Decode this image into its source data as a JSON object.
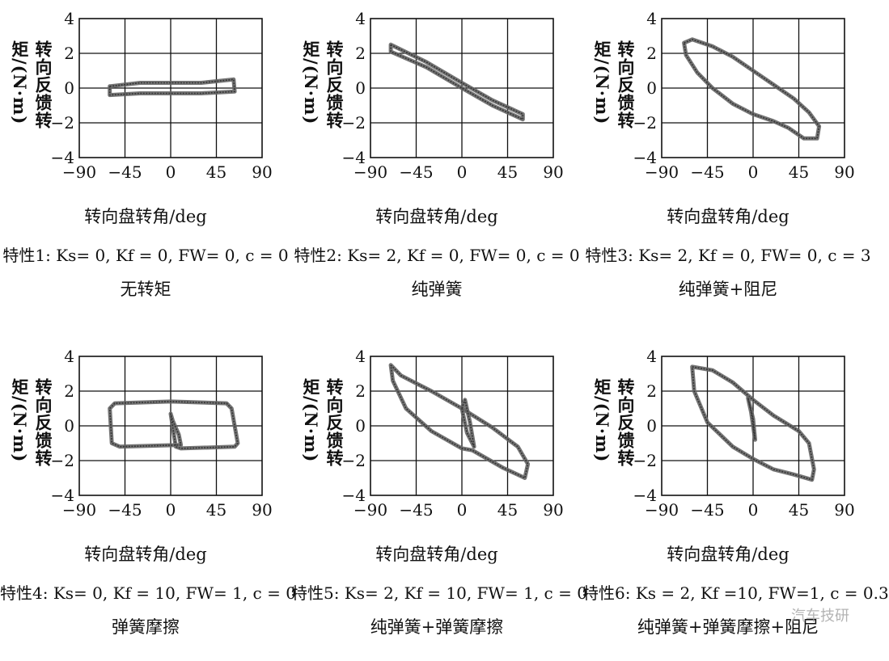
{
  "watermark": "汽车技研",
  "chart_data": [
    {
      "type": "line",
      "title": "特性1: Ks= 0, Kf = 0, FW= 0, c = 0",
      "subtitle": "无转矩",
      "xlabel": "转向盘转角/deg",
      "ylabel": "转向反馈转矩/(N·m)",
      "xlim": [
        -90,
        90
      ],
      "ylim": [
        -4,
        4
      ],
      "xticks": [
        "−90",
        "−45",
        "0",
        "45",
        "90"
      ],
      "yticks": [
        "4",
        "2",
        "0",
        "−2",
        "−4"
      ],
      "grid": true,
      "series": [
        {
          "x": [
            -60,
            -30,
            0,
            30,
            62,
            63,
            30,
            0,
            -30,
            -60,
            -60
          ],
          "y": [
            0.1,
            0.3,
            0.3,
            0.3,
            0.5,
            -0.2,
            -0.3,
            -0.3,
            -0.3,
            -0.4,
            0.1
          ]
        }
      ]
    },
    {
      "type": "line",
      "title": "特性2: Ks= 2, Kf = 0, FW= 0, c = 0",
      "subtitle": "纯弹簧",
      "xlabel": "转向盘转角/deg",
      "ylabel": "转向反馈转矩/(N·m)",
      "xlim": [
        -90,
        90
      ],
      "ylim": [
        -4,
        4
      ],
      "xticks": [
        "−90",
        "−45",
        "0",
        "45",
        "90"
      ],
      "yticks": [
        "4",
        "2",
        "0",
        "−2",
        "−4"
      ],
      "grid": true,
      "series": [
        {
          "x": [
            -70,
            -35,
            0,
            30,
            60,
            60,
            30,
            0,
            -35,
            -70,
            -70
          ],
          "y": [
            2.5,
            1.5,
            0.3,
            -0.7,
            -1.5,
            -1.8,
            -1.0,
            0.0,
            1.2,
            2.1,
            2.5
          ]
        }
      ]
    },
    {
      "type": "line",
      "title": "特性3: Ks= 2, Kf = 0, FW= 0, c = 3",
      "subtitle": "纯弹簧+阻尼",
      "xlabel": "转向盘转角/deg",
      "ylabel": "转向反馈转矩/(N·m)",
      "xlim": [
        -90,
        90
      ],
      "ylim": [
        -4,
        4
      ],
      "xticks": [
        "−90",
        "−45",
        "0",
        "45",
        "90"
      ],
      "yticks": [
        "4",
        "2",
        "0",
        "−2",
        "−4"
      ],
      "grid": true,
      "series": [
        {
          "x": [
            -68,
            -60,
            -40,
            -20,
            0,
            20,
            40,
            55,
            65,
            63,
            50,
            35,
            20,
            0,
            -20,
            -40,
            -55,
            -66,
            -68
          ],
          "y": [
            2.6,
            2.8,
            2.4,
            1.8,
            1.0,
            0.2,
            -0.6,
            -1.4,
            -2.2,
            -2.9,
            -2.9,
            -2.3,
            -1.9,
            -1.5,
            -0.9,
            0.0,
            0.9,
            1.9,
            2.6
          ]
        }
      ]
    },
    {
      "type": "line",
      "title": "特性4: Ks= 0, Kf = 10, FW= 1, c = 0",
      "subtitle": "弹簧摩擦",
      "xlabel": "转向盘转角/deg",
      "ylabel": "转向反馈转矩/(N·m)",
      "xlim": [
        -90,
        90
      ],
      "ylim": [
        -4,
        4
      ],
      "xticks": [
        "−90",
        "−45",
        "0",
        "45",
        "90"
      ],
      "yticks": [
        "4",
        "2",
        "0",
        "−2",
        "−4"
      ],
      "grid": true,
      "series": [
        {
          "x": [
            -60,
            -55,
            0,
            55,
            60,
            66,
            63,
            10,
            5,
            0,
            2,
            8,
            10,
            -50,
            -58,
            -60
          ],
          "y": [
            1.0,
            1.3,
            1.4,
            1.3,
            1.0,
            -1.0,
            -1.2,
            -1.3,
            -1.2,
            0.7,
            0.3,
            -0.5,
            -1.1,
            -1.2,
            -1.0,
            1.0
          ]
        }
      ]
    },
    {
      "type": "line",
      "title": "特性5: Ks= 2, Kf = 10, FW= 1, c = 0",
      "subtitle": "纯弹簧+弹簧摩擦",
      "xlabel": "转向盘转角/deg",
      "ylabel": "转向反馈转矩/(N·m)",
      "xlim": [
        -90,
        90
      ],
      "ylim": [
        -4,
        4
      ],
      "xticks": [
        "−90",
        "−45",
        "0",
        "45",
        "90"
      ],
      "yticks": [
        "4",
        "2",
        "0",
        "−2",
        "−4"
      ],
      "grid": true,
      "series": [
        {
          "x": [
            -70,
            -60,
            -30,
            0,
            30,
            55,
            65,
            62,
            40,
            10,
            0,
            -30,
            -55,
            -68,
            -70
          ],
          "y": [
            3.5,
            2.9,
            2.0,
            1.0,
            -0.1,
            -1.2,
            -2.2,
            -3.0,
            -2.4,
            -1.4,
            -1.3,
            -0.3,
            1.0,
            2.6,
            3.5
          ]
        },
        {
          "x": [
            0,
            3,
            8,
            12,
            5,
            0
          ],
          "y": [
            1.0,
            1.5,
            0.2,
            -1.2,
            -0.4,
            1.0
          ]
        }
      ]
    },
    {
      "type": "line",
      "title": "特性6: Ks = 2, Kf =10, FW=1, c = 0.3",
      "subtitle": "纯弹簧+弹簧摩擦+阻尼",
      "xlabel": "转向盘转角/deg",
      "ylabel": "转向反馈转矩/(N·m)",
      "xlim": [
        -90,
        90
      ],
      "ylim": [
        -4,
        4
      ],
      "xticks": [
        "−90",
        "−45",
        "0",
        "45",
        "90"
      ],
      "yticks": [
        "4",
        "2",
        "0",
        "−2",
        "−4"
      ],
      "grid": true,
      "series": [
        {
          "x": [
            -60,
            -40,
            -20,
            0,
            20,
            45,
            55,
            60,
            58,
            40,
            20,
            0,
            -20,
            -45,
            -58,
            -60
          ],
          "y": [
            3.4,
            3.2,
            2.5,
            1.5,
            0.6,
            -0.3,
            -1.0,
            -2.5,
            -3.1,
            -2.8,
            -2.5,
            -1.9,
            -1.2,
            0.2,
            2.0,
            3.4
          ]
        },
        {
          "x": [
            -5,
            -2,
            2,
            0,
            -5
          ],
          "y": [
            1.6,
            0.8,
            -0.8,
            0.4,
            1.6
          ]
        }
      ]
    }
  ]
}
